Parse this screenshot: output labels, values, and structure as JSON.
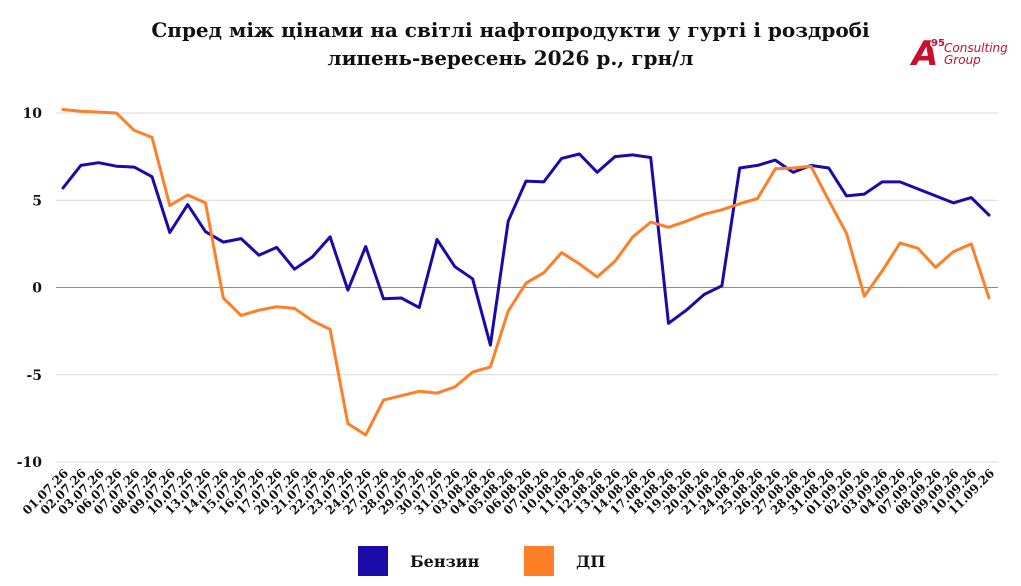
{
  "title_line1": "Спред між цінами на світлі нафтопродукти у гурті і роздробі",
  "title_line2": "липень-вересень 2026 р., грн/л",
  "logo": {
    "mark": "A",
    "sup": "95",
    "line1": "Consulting",
    "line2": "Group",
    "color": "#c8102e"
  },
  "chart_data": {
    "type": "line",
    "ylim": [
      -10,
      10
    ],
    "yticks": [
      -10,
      -5,
      0,
      5,
      10
    ],
    "grid": true,
    "legend": "bottom",
    "categories": [
      "01.07.26",
      "02.07.26",
      "03.07.26",
      "06.07.26",
      "07.07.26",
      "08.07.26",
      "09.07.26",
      "10.07.26",
      "13.07.26",
      "14.07.26",
      "15.07.26",
      "16.07.26",
      "17.07.26",
      "20.07.26",
      "21.07.26",
      "22.07.26",
      "23.07.26",
      "24.07.26",
      "27.07.26",
      "28.07.26",
      "29.07.26",
      "30.07.26",
      "31.07.26",
      "03.08.26",
      "04.08.26",
      "05.08.26",
      "06.08.26",
      "07.08.26",
      "10.08.26",
      "11.08.26",
      "12.08.26",
      "13.08.26",
      "14.08.26",
      "17.08.26",
      "18.08.26",
      "19.08.26",
      "20.08.26",
      "21.08.26",
      "24.08.26",
      "25.08.26",
      "26.08.26",
      "27.08.26",
      "28.08.26",
      "31.08.26",
      "01.09.26",
      "02.09.26",
      "03.09.26",
      "04.09.26",
      "07.09.26",
      "08.09.26",
      "09.09.26",
      "10.09.26",
      "11.09.26"
    ],
    "series": [
      {
        "name": "Бензин",
        "color": "#1a0aa8",
        "values": [
          5.7,
          7.0,
          7.15,
          6.95,
          6.9,
          6.35,
          3.15,
          4.75,
          3.2,
          2.6,
          2.8,
          1.85,
          2.3,
          1.05,
          1.75,
          2.9,
          -0.15,
          2.35,
          -0.65,
          -0.6,
          -1.15,
          2.75,
          1.2,
          0.5,
          -3.3,
          3.8,
          6.1,
          6.05,
          7.4,
          7.65,
          6.6,
          7.5,
          7.6,
          7.45,
          -2.05,
          -1.3,
          -0.4,
          0.1,
          6.85,
          7.0,
          7.3,
          6.6,
          7.0,
          6.85,
          5.25,
          5.35,
          6.05,
          6.05,
          5.65,
          5.25,
          4.85,
          5.15,
          4.15
        ]
      },
      {
        "name": "ДП",
        "color": "#ff7f27",
        "values": [
          10.2,
          10.1,
          10.05,
          10.0,
          9.0,
          8.6,
          4.7,
          5.3,
          4.85,
          -0.6,
          -1.6,
          -1.3,
          -1.1,
          -1.2,
          -1.9,
          -2.4,
          -7.8,
          -8.45,
          -6.45,
          -6.2,
          -5.95,
          -6.05,
          -5.7,
          -4.85,
          -4.55,
          -1.35,
          0.25,
          0.85,
          2.0,
          1.35,
          0.6,
          1.5,
          2.9,
          3.75,
          3.45,
          3.8,
          4.2,
          4.45,
          4.8,
          5.1,
          6.8,
          6.85,
          6.95,
          5.0,
          3.1,
          -0.5,
          0.95,
          2.55,
          2.25,
          1.15,
          2.05,
          2.5,
          -0.6
        ]
      }
    ]
  }
}
